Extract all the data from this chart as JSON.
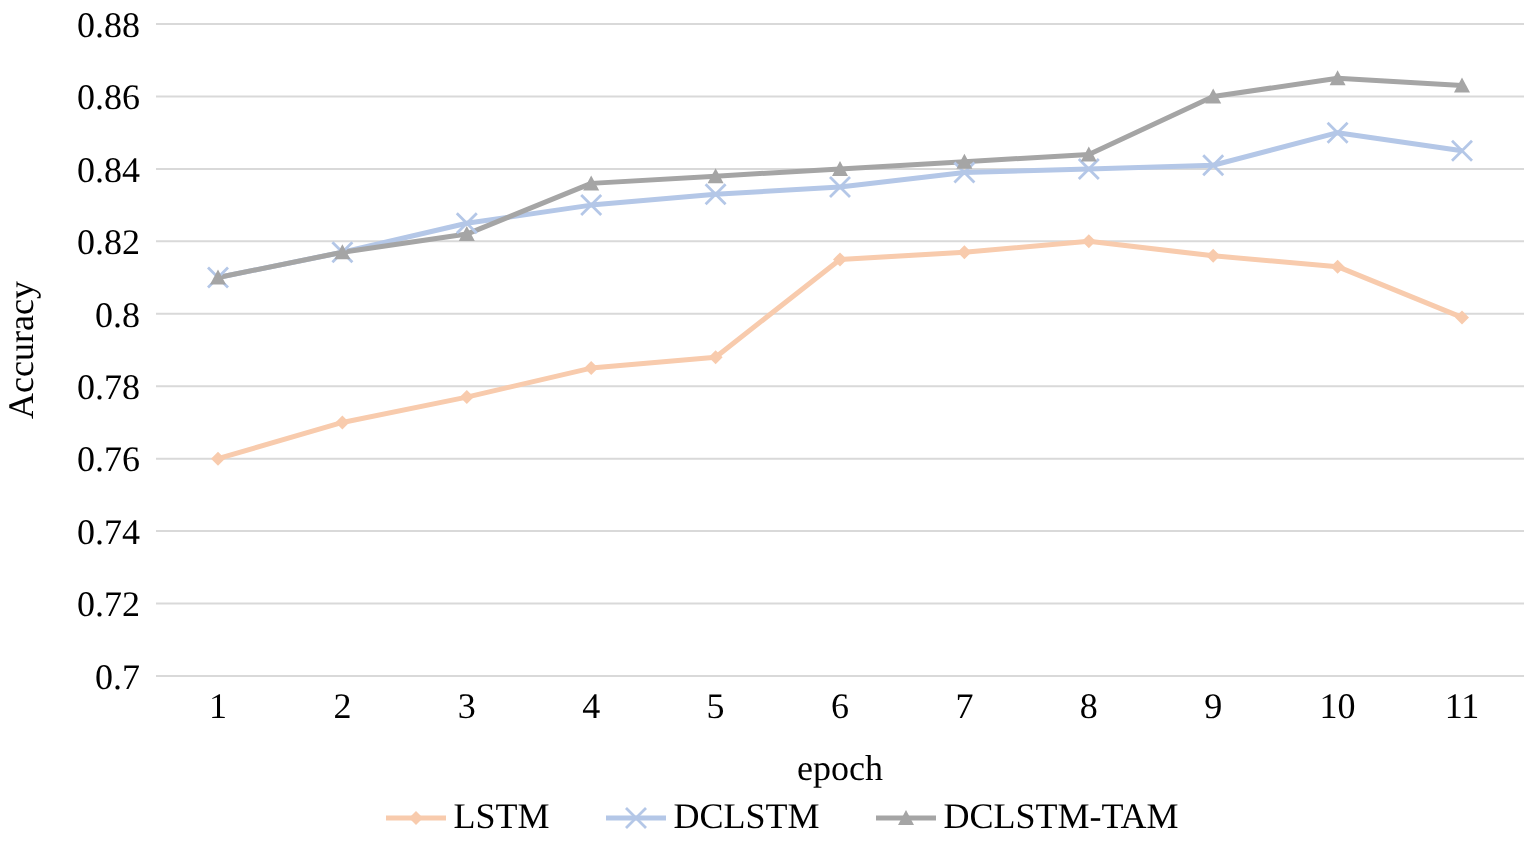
{
  "chart_data": {
    "type": "line",
    "xlabel": "epoch",
    "ylabel": "Accuracy",
    "categories": [
      "1",
      "2",
      "3",
      "4",
      "5",
      "6",
      "7",
      "8",
      "9",
      "10",
      "11"
    ],
    "series": [
      {
        "name": "LSTM",
        "color": "#f8cbad",
        "marker": "diamond",
        "values": [
          0.76,
          0.77,
          0.777,
          0.785,
          0.788,
          0.815,
          0.817,
          0.82,
          0.816,
          0.813,
          0.799
        ]
      },
      {
        "name": "DCLSTM",
        "color": "#b4c7e7",
        "marker": "cross",
        "values": [
          0.81,
          0.817,
          0.825,
          0.83,
          0.833,
          0.835,
          0.839,
          0.84,
          0.841,
          0.85,
          0.845
        ]
      },
      {
        "name": "DCLSTM-TAM",
        "color": "#a5a5a5",
        "marker": "triangle",
        "values": [
          0.81,
          0.817,
          0.822,
          0.836,
          0.838,
          0.84,
          0.842,
          0.844,
          0.86,
          0.865,
          0.863
        ]
      }
    ],
    "ylim": [
      0.7,
      0.88
    ],
    "yticks": [
      0.7,
      0.72,
      0.74,
      0.76,
      0.78,
      0.8,
      0.82,
      0.84,
      0.86,
      0.88
    ],
    "grid": "y",
    "legend": "bottom",
    "line_style": "solid"
  }
}
